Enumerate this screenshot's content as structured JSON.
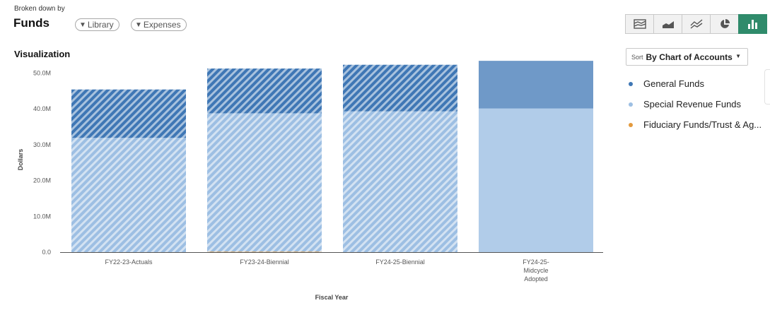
{
  "header": {
    "broken_down_by": "Broken down by",
    "title": "Funds",
    "filters": [
      "Library",
      "Expenses"
    ]
  },
  "section_title": "Visualization",
  "toolbar": {
    "buttons": [
      "stacked-area-icon",
      "area-chart-icon",
      "line-chart-icon",
      "pie-chart-icon",
      "bar-chart-icon"
    ],
    "active": "bar-chart-icon"
  },
  "sort": {
    "prefix": "Sort",
    "value": "By Chart of Accounts"
  },
  "legend": [
    {
      "label": "General Funds",
      "color": "#3f77b5"
    },
    {
      "label": "Special Revenue Funds",
      "color": "#9dbfe3"
    },
    {
      "label": "Fiduciary Funds/Trust & Ag...",
      "color": "#e39a3d"
    }
  ],
  "chart_data": {
    "type": "bar",
    "stacked": true,
    "xlabel": "Fiscal Year",
    "ylabel": "Dollars",
    "ylim": [
      0,
      55000000
    ],
    "yticks": [
      0,
      10000000,
      20000000,
      30000000,
      40000000,
      50000000
    ],
    "ytick_labels": [
      "0.0",
      "10.0M",
      "20.0M",
      "30.0M",
      "40.0M",
      "50.0M"
    ],
    "categories": [
      [
        "FY22-23-Actuals"
      ],
      [
        "FY23-24-Biennial"
      ],
      [
        "FY24-25-Biennial"
      ],
      [
        "FY24-25-",
        "Midcycle",
        "Adopted"
      ]
    ],
    "hatched": [
      true,
      true,
      true,
      false
    ],
    "series": [
      {
        "name": "Fiduciary Funds/Trust & Ag...",
        "color": "#e39a3d",
        "values": [
          0,
          150000,
          0,
          0
        ]
      },
      {
        "name": "Special Revenue Funds",
        "color": "#9dbfe3",
        "values": [
          31900000,
          38600000,
          39300000,
          40100000
        ]
      },
      {
        "name": "General Funds",
        "color": "#3f77b5",
        "values": [
          13500000,
          12500000,
          13000000,
          13300000
        ]
      }
    ]
  }
}
